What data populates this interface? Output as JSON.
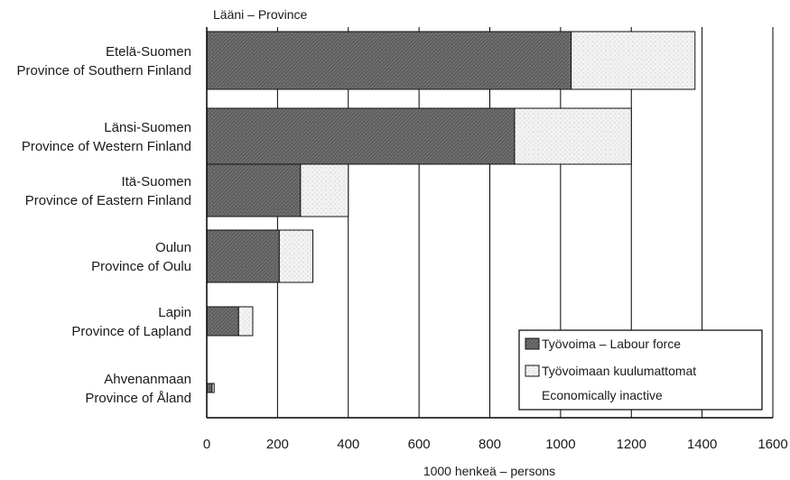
{
  "chart_data": {
    "type": "bar",
    "orientation": "horizontal",
    "stacked": true,
    "y_axis_title": "Lääni – Province",
    "xlabel": "1000 henkeä – persons",
    "xlim": [
      0,
      1600
    ],
    "x_ticks": [
      "0",
      "200",
      "400",
      "600",
      "800",
      "1000",
      "1200",
      "1400",
      "1600"
    ],
    "grid": "vertical",
    "categories": [
      [
        "Etelä-Suomen",
        "Province of Southern Finland"
      ],
      [
        "Länsi-Suomen",
        "Province of Western Finland"
      ],
      [
        "Itä-Suomen",
        "Province of Eastern Finland"
      ],
      [
        "Oulun",
        "Province of Oulu"
      ],
      [
        "Lapin",
        "Province of Lapland"
      ],
      [
        "Ahvenanmaan",
        "Province of Åland"
      ]
    ],
    "series": [
      {
        "name": "Työvoima – Labour force",
        "color": "#5a5a5a",
        "values": [
          1030,
          870,
          265,
          205,
          90,
          15
        ]
      },
      {
        "name": [
          "Työvoimaan kuulumattomat",
          "Economically inactive"
        ],
        "color": "#f1f1f1",
        "values": [
          350,
          330,
          135,
          95,
          40,
          6
        ]
      }
    ],
    "legend_position": "bottom-right"
  }
}
